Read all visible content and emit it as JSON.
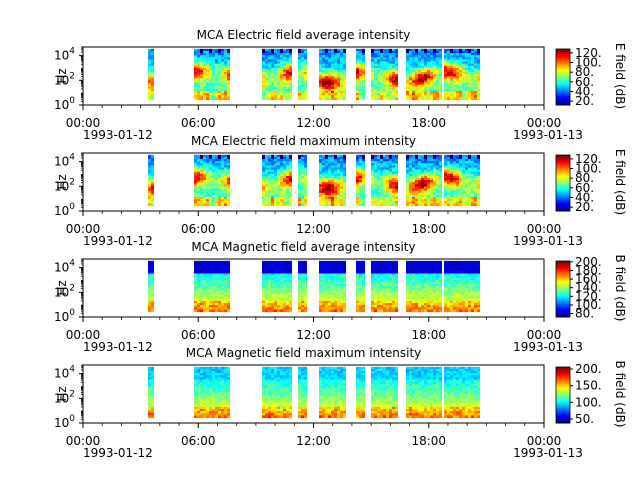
{
  "figure": {
    "x_ticks": [
      "00:00",
      "06:00",
      "12:00",
      "18:00",
      "00:00"
    ],
    "x_tick_hours": [
      0,
      6,
      12,
      18,
      24
    ],
    "date_labels": [
      "1993-01-12",
      "1993-01-13"
    ],
    "y_ticks": [
      "10^0",
      "10^2",
      "10^4"
    ],
    "y_tick_exponents": [
      0,
      2,
      4
    ]
  },
  "chart_data": [
    {
      "type": "heatmap",
      "title": "MCA  Electric field average intensity",
      "ylabel": "Hz",
      "xlim": [
        "1993-01-12 00:00",
        "1993-01-13 00:00"
      ],
      "ylim_log10": [
        0,
        4.7
      ],
      "colorbar_label": "E field (dB)",
      "colorbar_range": [
        12,
        128
      ],
      "colorbar_ticks": [
        "20.",
        "40.",
        "60.",
        "80.",
        "100.",
        "120."
      ],
      "colorbar_tick_values": [
        20,
        40,
        60,
        80,
        100,
        120
      ],
      "style": "electric",
      "data_hour_ranges": [
        [
          3.4,
          3.6
        ],
        [
          5.8,
          7.6
        ],
        [
          9.3,
          10.8
        ],
        [
          11.2,
          11.6
        ],
        [
          12.3,
          13.7
        ],
        [
          14.2,
          14.6
        ],
        [
          15.0,
          16.4
        ],
        [
          16.8,
          18.6
        ],
        [
          18.8,
          20.6
        ]
      ]
    },
    {
      "type": "heatmap",
      "title": "MCA  Electric field maximum intensity",
      "ylabel": "Hz",
      "xlim": [
        "1993-01-12 00:00",
        "1993-01-13 00:00"
      ],
      "ylim_log10": [
        0,
        4.7
      ],
      "colorbar_label": "E field (dB)",
      "colorbar_range": [
        12,
        128
      ],
      "colorbar_ticks": [
        "20.",
        "40.",
        "60.",
        "80.",
        "100.",
        "120."
      ],
      "colorbar_tick_values": [
        20,
        40,
        60,
        80,
        100,
        120
      ],
      "style": "electric",
      "data_hour_ranges": [
        [
          3.4,
          3.6
        ],
        [
          5.8,
          7.6
        ],
        [
          9.3,
          10.8
        ],
        [
          11.2,
          11.6
        ],
        [
          12.3,
          13.7
        ],
        [
          14.2,
          14.6
        ],
        [
          15.0,
          16.4
        ],
        [
          16.8,
          18.6
        ],
        [
          18.8,
          20.6
        ]
      ]
    },
    {
      "type": "heatmap",
      "title": "MCA  Magnetic field average intensity",
      "ylabel": "Hz",
      "xlim": [
        "1993-01-12 00:00",
        "1993-01-13 00:00"
      ],
      "ylim_log10": [
        0,
        4.7
      ],
      "colorbar_label": "B field (dB)",
      "colorbar_range": [
        72,
        202
      ],
      "colorbar_ticks": [
        "80.",
        "100.",
        "120.",
        "140.",
        "160.",
        "180.",
        "200."
      ],
      "colorbar_tick_values": [
        80,
        100,
        120,
        140,
        160,
        180,
        200
      ],
      "style": "magnetic",
      "data_hour_ranges": [
        [
          3.4,
          3.6
        ],
        [
          5.8,
          7.6
        ],
        [
          9.3,
          10.8
        ],
        [
          11.2,
          11.6
        ],
        [
          12.3,
          13.7
        ],
        [
          14.2,
          14.6
        ],
        [
          15.0,
          16.4
        ],
        [
          16.8,
          18.6
        ],
        [
          18.8,
          20.6
        ]
      ]
    },
    {
      "type": "heatmap",
      "title": "MCA  Magnetic field maximum intensity",
      "ylabel": "Hz",
      "xlim": [
        "1993-01-12 00:00",
        "1993-01-13 00:00"
      ],
      "ylim_log10": [
        0,
        4.7
      ],
      "colorbar_label": "B field (dB)",
      "colorbar_range": [
        38,
        206
      ],
      "colorbar_ticks": [
        "50.",
        "100.",
        "150.",
        "200."
      ],
      "colorbar_tick_values": [
        50,
        100,
        150,
        200
      ],
      "style": "magnetic",
      "data_hour_ranges": [
        [
          3.4,
          3.6
        ],
        [
          5.8,
          7.6
        ],
        [
          9.3,
          10.8
        ],
        [
          11.2,
          11.6
        ],
        [
          12.3,
          13.7
        ],
        [
          14.2,
          14.6
        ],
        [
          15.0,
          16.4
        ],
        [
          16.8,
          18.6
        ],
        [
          18.8,
          20.6
        ]
      ]
    }
  ]
}
